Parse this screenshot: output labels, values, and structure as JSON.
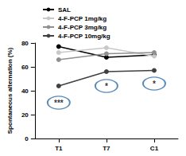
{
  "chart_data": {
    "type": "line",
    "y_label": "Spontaneous alternation (%)",
    "categories": [
      "T1",
      "T7",
      "C1"
    ],
    "series": [
      {
        "name": "SAL",
        "color": "#000000",
        "values": [
          77,
          68,
          70
        ]
      },
      {
        "name": "4-F-PCP 1mg/kg",
        "color": "#c8c8c8",
        "values": [
          72,
          76,
          69
        ]
      },
      {
        "name": "4-F-PCP 3mg/kg",
        "color": "#909090",
        "values": [
          66,
          71,
          72
        ]
      },
      {
        "name": "4-F-PCP 10mg/kg",
        "color": "#404040",
        "values": [
          44,
          56,
          57
        ]
      }
    ],
    "annotations": [
      {
        "text": "***",
        "x": "T1",
        "y": 30
      },
      {
        "text": "*",
        "x": "T7",
        "y": 44
      },
      {
        "text": "*",
        "x": "C1",
        "y": 46
      }
    ],
    "ylim": [
      0,
      80
    ],
    "yticks": [
      0,
      20,
      40,
      60,
      80
    ],
    "grid": false,
    "legend": "upper left",
    "marker": "circle",
    "line_style": "solid"
  }
}
